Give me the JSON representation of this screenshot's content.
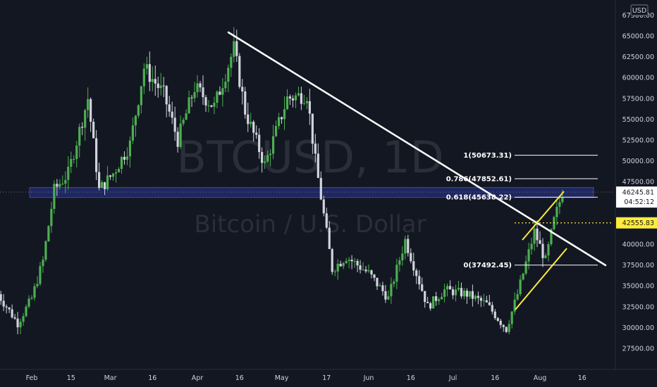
{
  "symbol": "BTCUSD, 1D",
  "description": "Bitcoin / U.S. Dollar",
  "currency": "USD",
  "colors": {
    "background": "#131722",
    "up": "#26a69a",
    "candle_up": "#4caf50",
    "candle_down": "#d1d4dc",
    "trendline": "#ffffff",
    "channel": "#ffeb3b",
    "zone_fill": "#283593",
    "zone_border": "#3949ab",
    "price_badge": "#ffeb3b",
    "current_badge": "#ffffff"
  },
  "price_labels": {
    "current_price": "46245.81",
    "countdown": "04:52:12",
    "marked_price": "42555.83"
  },
  "chart_data": {
    "type": "candlestick",
    "title": "BTCUSD, 1D",
    "subtitle": "Bitcoin / U.S. Dollar",
    "y_unit": "USD",
    "ylim": [
      26000,
      68000
    ],
    "y_ticks": [
      "67500.00",
      "65000.00",
      "62500.00",
      "60000.00",
      "57500.00",
      "55000.00",
      "52500.00",
      "50000.00",
      "47500.00",
      "45000.00",
      "42500.00",
      "40000.00",
      "37500.00",
      "35000.00",
      "32500.00",
      "30000.00",
      "27500.00"
    ],
    "x_ticks": [
      "Feb",
      "15",
      "Mar",
      "16",
      "Apr",
      "16",
      "May",
      "17",
      "Jun",
      "16",
      "Jul",
      "16",
      "Aug",
      "16"
    ],
    "fib_levels": [
      {
        "label": "1(50673.31)",
        "value": 50673.31
      },
      {
        "label": "0.786(47852.61)",
        "value": 47852.61
      },
      {
        "label": "0.618(45638.22)",
        "value": 45638.22
      },
      {
        "label": "0(37492.45)",
        "value": 37492.45
      }
    ],
    "resistance_zone": [
      45600,
      46800
    ],
    "horizontal_line": 42555.83,
    "price_path": [
      [
        "2021-01-20",
        34000
      ],
      [
        "2021-01-27",
        30500
      ],
      [
        "2021-02-01",
        33500
      ],
      [
        "2021-02-05",
        38000
      ],
      [
        "2021-02-09",
        46500
      ],
      [
        "2021-02-14",
        48500
      ],
      [
        "2021-02-21",
        57500
      ],
      [
        "2021-02-25",
        46500
      ],
      [
        "2021-03-02",
        48500
      ],
      [
        "2021-03-08",
        52000
      ],
      [
        "2021-03-13",
        61200
      ],
      [
        "2021-03-20",
        58000
      ],
      [
        "2021-03-25",
        52500
      ],
      [
        "2021-03-31",
        58800
      ],
      [
        "2021-04-07",
        56500
      ],
      [
        "2021-04-14",
        63500
      ],
      [
        "2021-04-18",
        56000
      ],
      [
        "2021-04-25",
        49500
      ],
      [
        "2021-05-03",
        57500
      ],
      [
        "2021-05-10",
        58000
      ],
      [
        "2021-05-13",
        50000
      ],
      [
        "2021-05-19",
        37000
      ],
      [
        "2021-05-24",
        38500
      ],
      [
        "2021-06-01",
        36500
      ],
      [
        "2021-06-08",
        33500
      ],
      [
        "2021-06-14",
        40500
      ],
      [
        "2021-06-22",
        32500
      ],
      [
        "2021-06-28",
        34500
      ],
      [
        "2021-07-06",
        34000
      ],
      [
        "2021-07-13",
        32800
      ],
      [
        "2021-07-20",
        29800
      ],
      [
        "2021-07-24",
        34000
      ],
      [
        "2021-07-30",
        41500
      ],
      [
        "2021-08-03",
        38000
      ],
      [
        "2021-08-06",
        42800
      ],
      [
        "2021-08-09",
        46245.81
      ]
    ]
  }
}
